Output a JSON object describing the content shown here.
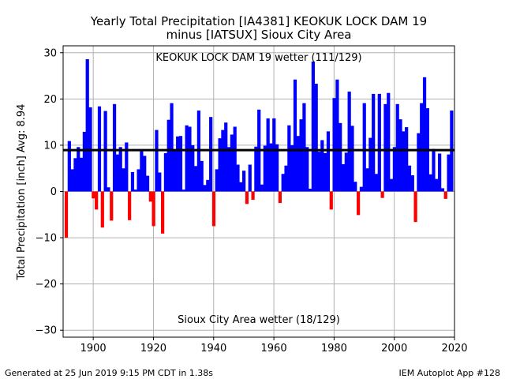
{
  "chart_data": {
    "type": "bar",
    "title": "Yearly Total Precipitation [IA4381] KEOKUK LOCK DAM 19",
    "subtitle": "minus [IATSUX] Sioux City Area",
    "ylabel": "Total Precipitation [inch] Avg: 8.94",
    "xlabel": "",
    "xlim": [
      1890,
      2020
    ],
    "ylim": [
      -31.5,
      31.5
    ],
    "xticks": [
      1900,
      1920,
      1940,
      1960,
      1980,
      2000,
      2020
    ],
    "yticks": [
      -30,
      -20,
      -10,
      0,
      10,
      20,
      30
    ],
    "grid": true,
    "average": 8.94,
    "annotation_top": "KEOKUK LOCK DAM 19 wetter (111/129)",
    "annotation_bottom": "Sioux City Area wetter (18/129)",
    "positive_color": "#0000ff",
    "negative_color": "#ff0000",
    "avg_line_color": "#000000",
    "start_year": 1891,
    "values": [
      -10.0,
      10.9,
      4.8,
      7.2,
      9.6,
      7.3,
      12.9,
      28.6,
      18.2,
      -1.5,
      -3.9,
      18.4,
      -7.8,
      17.4,
      0.9,
      -6.3,
      18.9,
      8.0,
      9.6,
      5.0,
      10.6,
      -6.2,
      4.2,
      0.4,
      4.8,
      8.7,
      7.7,
      3.4,
      -2.2,
      -7.5,
      13.3,
      4.1,
      -9.1,
      8.3,
      15.5,
      19.1,
      8.8,
      11.9,
      12.0,
      0.4,
      14.3,
      14.0,
      10.0,
      5.5,
      17.5,
      6.6,
      1.4,
      2.5,
      16.1,
      -7.5,
      4.8,
      11.5,
      13.3,
      14.9,
      9.6,
      12.3,
      14.0,
      5.8,
      2.0,
      4.5,
      -2.7,
      5.8,
      -1.8,
      9.7,
      17.7,
      1.5,
      9.9,
      15.8,
      10.4,
      15.8,
      10.2,
      -2.5,
      3.8,
      5.6,
      14.3,
      10.0,
      24.2,
      12.0,
      15.6,
      19.1,
      9.6,
      0.6,
      28.1,
      23.3,
      8.6,
      11.1,
      8.3,
      13.0,
      -3.9,
      20.2,
      24.2,
      14.8,
      5.9,
      8.4,
      21.6,
      14.2,
      2.1,
      -5.1,
      1.0,
      19.1,
      5.0,
      11.6,
      21.1,
      3.8,
      21.1,
      -1.4,
      18.9,
      21.3,
      2.7,
      9.6,
      18.9,
      15.6,
      13.0,
      13.9,
      5.6,
      3.5,
      -6.6,
      12.6,
      19.1,
      24.7,
      18.0,
      3.7,
      9.2,
      2.7,
      8.2,
      0.7,
      -1.6,
      8.0,
      17.5
    ]
  },
  "footer": {
    "left": "Generated at 25 Jun 2019 9:15 PM CDT in 1.38s",
    "right": "IEM Autoplot App #128"
  }
}
